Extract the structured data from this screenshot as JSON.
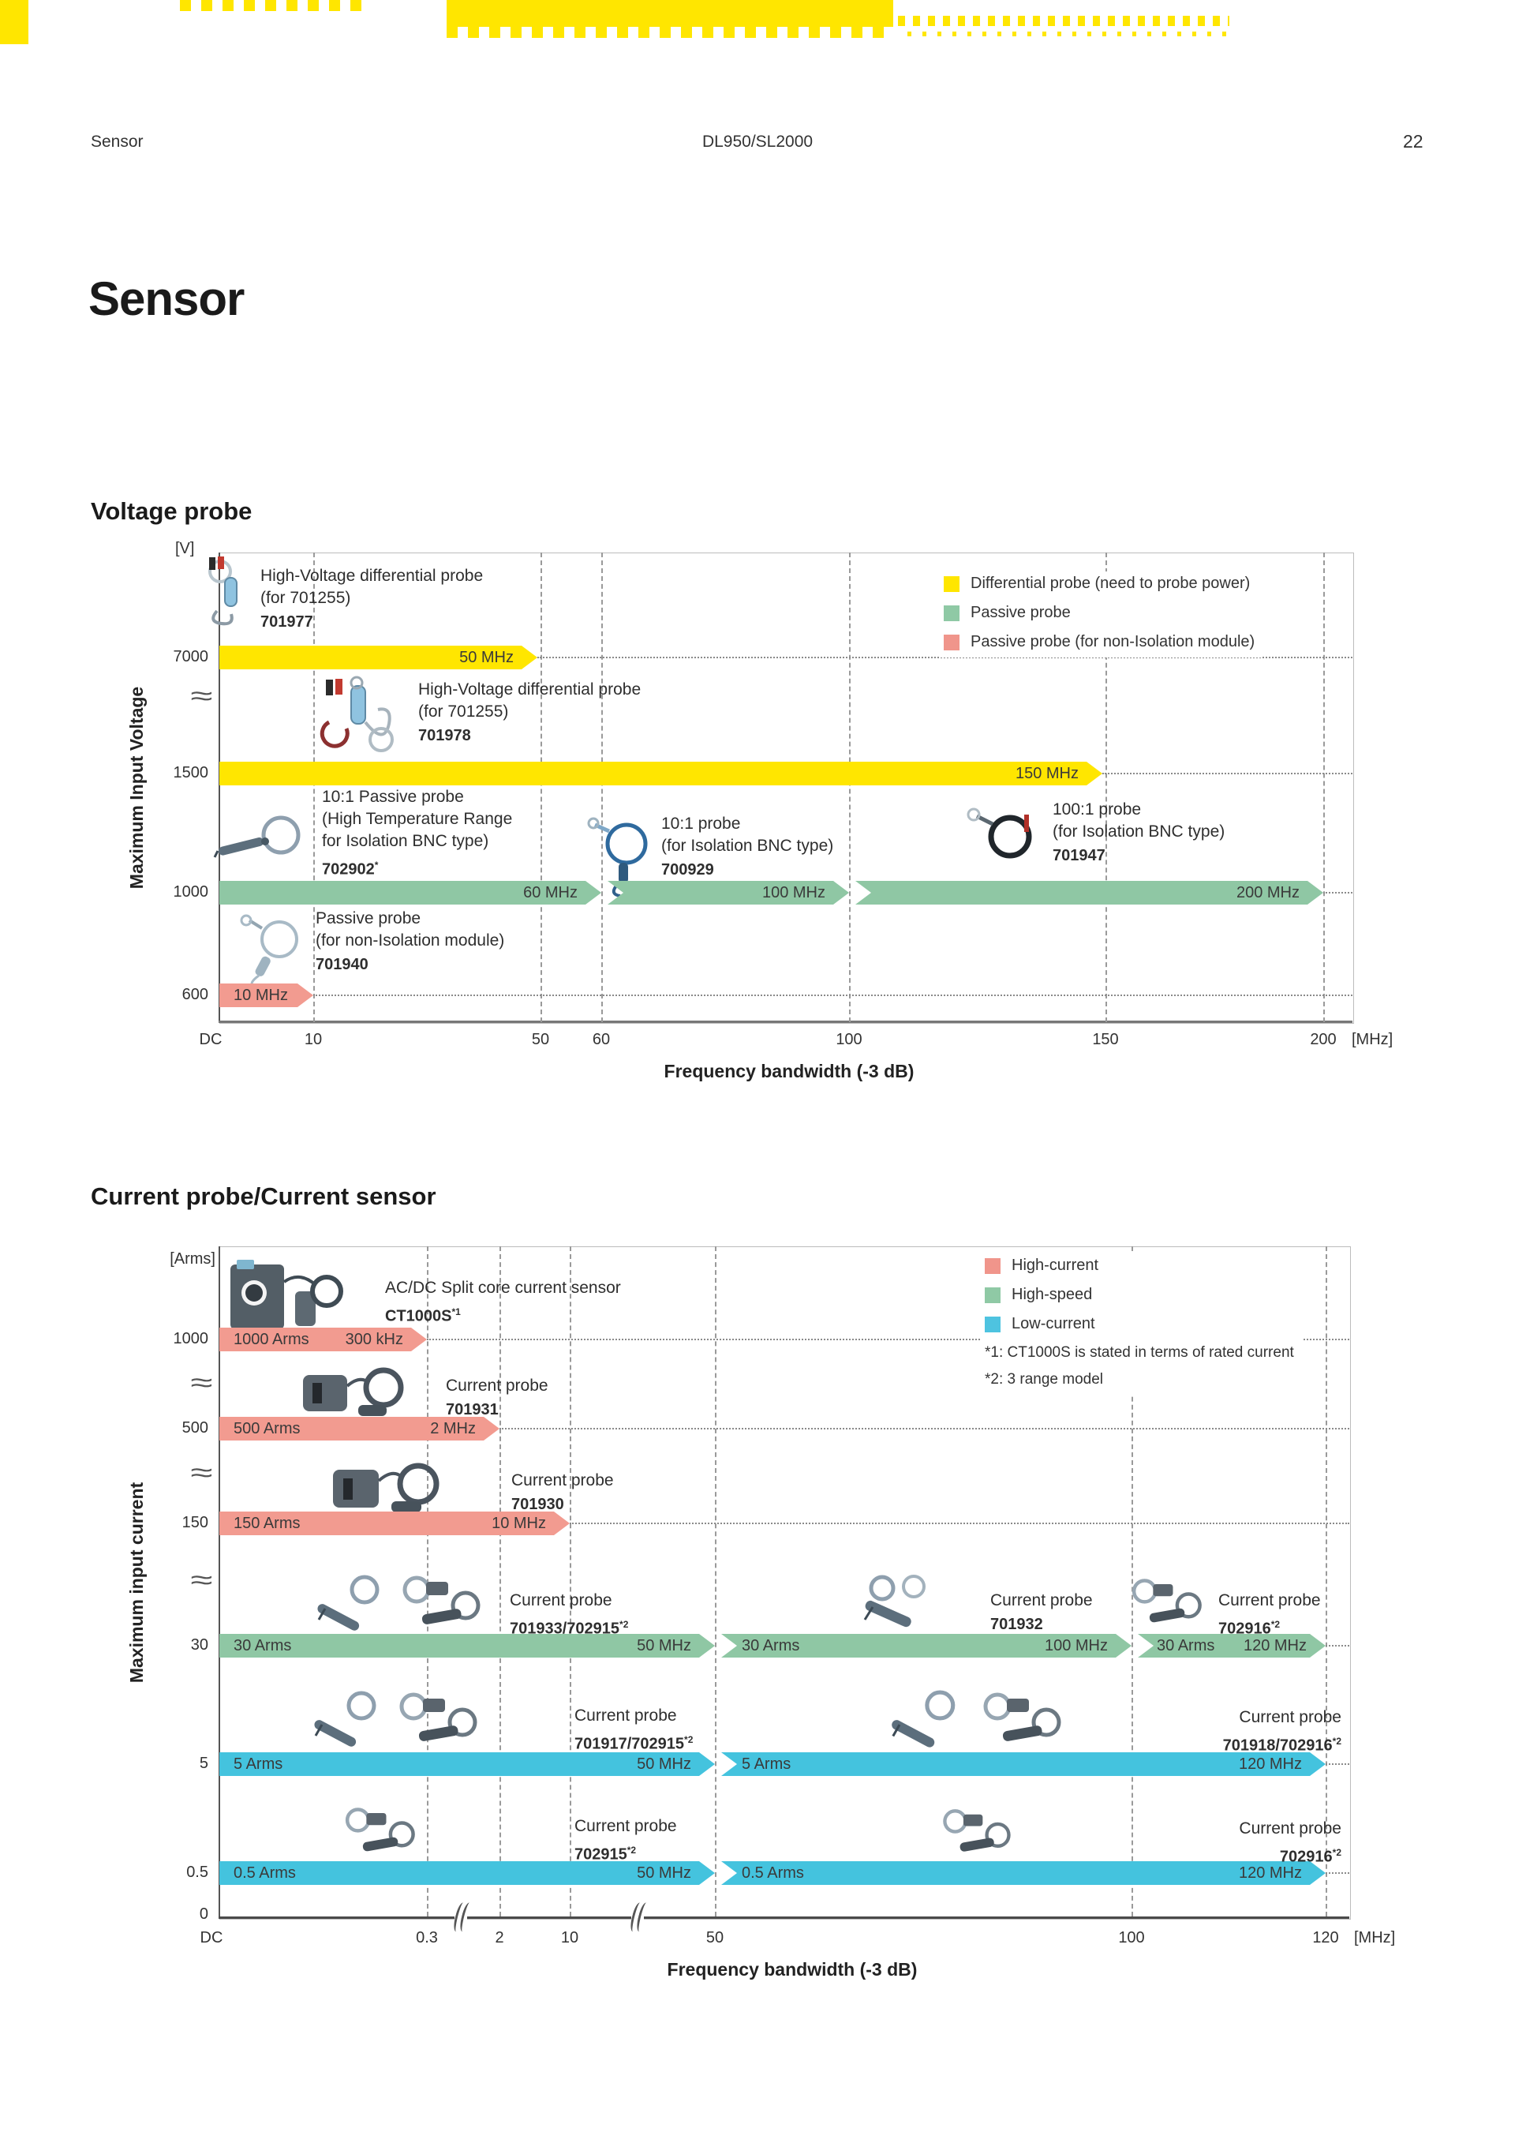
{
  "page": {
    "header_left": "Sensor",
    "header_center": "DL950/SL2000",
    "page_number": "22",
    "title": "Sensor"
  },
  "colors": {
    "yellow": "#FFE600",
    "green": "#8FC7A4",
    "salmon": "#F29B90",
    "blue": "#44C3DE",
    "legend_salmon": "#F0958B",
    "legend_green": "#8FC9A5",
    "legend_blue": "#4EC3E0"
  },
  "v": {
    "heading": "Voltage probe",
    "unit": "[V]",
    "ytitle": "Maximum Input Voltage",
    "xtitle": "Frequency bandwidth (-3 dB)",
    "xt": {
      "dc": "DC",
      "t10": "10",
      "t50": "50",
      "t60": "60",
      "t100": "100",
      "t150": "150",
      "t200": "200",
      "unit": "[MHz]"
    },
    "yt": {
      "v7000": "7000",
      "v1500": "1500",
      "v1000": "1000",
      "v600": "600"
    },
    "leg": {
      "l1": "Differential probe (need to probe power)",
      "l2": "Passive probe",
      "l3": "Passive probe (for non-Isolation module)"
    },
    "p701977": {
      "l1": "High-Voltage differential probe",
      "l2": "(for 701255)",
      "model": "701977"
    },
    "p701978": {
      "l1": "High-Voltage differential probe",
      "l2": "(for 701255)",
      "model": "701978"
    },
    "p702902": {
      "l1": "10:1 Passive probe",
      "l2": "(High Temperature Range",
      "l3": " for Isolation BNC type)",
      "model": "702902*"
    },
    "p700929": {
      "l1": "10:1 probe",
      "l2": "(for Isolation BNC type)",
      "model": "700929"
    },
    "p701947": {
      "l1": "100:1 probe",
      "l2": "(for Isolation BNC type)",
      "model": "701947"
    },
    "p701940": {
      "l1": "Passive probe",
      "l2": "(for non-Isolation module)",
      "model": "701940"
    },
    "bars": {
      "b7000": {
        "f": "50 MHz"
      },
      "b1500": {
        "f": "150 MHz"
      },
      "b1000a": {
        "f": "60 MHz"
      },
      "b1000b": {
        "f": "100 MHz"
      },
      "b1000c": {
        "f": "200 MHz"
      },
      "b600": {
        "f": "10 MHz"
      }
    },
    "ranges": [
      {
        "model": "701977",
        "category": "differential",
        "max_input_v": 7000,
        "bandwidth": "50 MHz"
      },
      {
        "model": "701978",
        "category": "differential",
        "max_input_v": 1500,
        "bandwidth": "150 MHz"
      },
      {
        "model": "702902",
        "category": "passive",
        "max_input_v": 1000,
        "bandwidth": "60 MHz"
      },
      {
        "model": "700929",
        "category": "passive",
        "max_input_v": 1000,
        "bandwidth": "100 MHz"
      },
      {
        "model": "701947",
        "category": "passive",
        "max_input_v": 1000,
        "bandwidth": "200 MHz"
      },
      {
        "model": "701940",
        "category": "passive non-isolation",
        "max_input_v": 600,
        "bandwidth": "10 MHz"
      }
    ]
  },
  "c": {
    "heading": "Current probe/Current sensor",
    "unit": "[Arms]",
    "ytitle": "Maximum input current",
    "xtitle": "Frequency bandwidth (-3 dB)",
    "xt": {
      "dc": "DC",
      "t03": "0.3",
      "t2": "2",
      "t10": "10",
      "t50": "50",
      "t100": "100",
      "t120": "120",
      "unit": "[MHz]"
    },
    "yt": {
      "v1000": "1000",
      "v500": "500",
      "v150": "150",
      "v30": "30",
      "v5": "5",
      "v05": "0.5",
      "v0": "0"
    },
    "leg": {
      "l1": "High-current",
      "l2": "High-speed",
      "l3": "Low-current"
    },
    "notes": {
      "n1": "*1: CT1000S is stated in terms of rated current",
      "n2": "*2: 3 range model"
    },
    "pCT": {
      "l1": "AC/DC Split core current sensor",
      "model": "CT1000S*1"
    },
    "p701931": {
      "l1": "Current probe",
      "model": "701931"
    },
    "p701930": {
      "l1": "Current probe",
      "model": "701930"
    },
    "p701933": {
      "l1": "Current probe",
      "model": "701933/702915*2"
    },
    "p701932": {
      "l1": "Current probe",
      "model": "701932"
    },
    "p702916a": {
      "l1": "Current probe",
      "model": "702916*2"
    },
    "p701917": {
      "l1": "Current probe",
      "model": "701917/702915*2"
    },
    "p701918": {
      "l1": "Current probe",
      "model": "701918/702916*2"
    },
    "p702915b": {
      "l1": "Current probe",
      "model": "702915*2"
    },
    "p702916b": {
      "l1": "Current probe",
      "model": "702916*2"
    },
    "bars": {
      "b1000": {
        "a": "1000 Arms",
        "f": "300 kHz"
      },
      "b500": {
        "a": "500 Arms",
        "f": "2 MHz"
      },
      "b150": {
        "a": "150 Arms",
        "f": "10 MHz"
      },
      "b30a": {
        "a": "30 Arms",
        "f": "50 MHz"
      },
      "b30b": {
        "a": "30 Arms",
        "f": "100 MHz"
      },
      "b30c": {
        "a": "30 Arms",
        "f": "120 MHz"
      },
      "b5a": {
        "a": "5 Arms",
        "f": "50 MHz"
      },
      "b5b": {
        "a": "5 Arms",
        "f": "120 MHz"
      },
      "b05a": {
        "a": "0.5 Arms",
        "f": "50 MHz"
      },
      "b05b": {
        "a": "0.5 Arms",
        "f": "120 MHz"
      }
    },
    "ranges": [
      {
        "model": "CT1000S",
        "category": "high-current",
        "max_current": "1000 Arms",
        "bandwidth": "300 kHz"
      },
      {
        "model": "701931",
        "category": "high-current",
        "max_current": "500 Arms",
        "bandwidth": "2 MHz"
      },
      {
        "model": "701930",
        "category": "high-current",
        "max_current": "150 Arms",
        "bandwidth": "10 MHz"
      },
      {
        "model": "701933/702915",
        "category": "high-speed",
        "max_current": "30 Arms",
        "bandwidth": "50 MHz"
      },
      {
        "model": "701932",
        "category": "high-speed",
        "max_current": "30 Arms",
        "bandwidth": "100 MHz"
      },
      {
        "model": "702916",
        "category": "high-speed",
        "max_current": "30 Arms",
        "bandwidth": "120 MHz"
      },
      {
        "model": "701917/702915",
        "category": "low-current",
        "max_current": "5 Arms",
        "bandwidth": "50 MHz"
      },
      {
        "model": "701918/702916",
        "category": "low-current",
        "max_current": "5 Arms",
        "bandwidth": "120 MHz"
      },
      {
        "model": "702915",
        "category": "low-current",
        "max_current": "0.5 Arms",
        "bandwidth": "50 MHz"
      },
      {
        "model": "702916",
        "category": "low-current",
        "max_current": "0.5 Arms",
        "bandwidth": "120 MHz"
      }
    ]
  }
}
